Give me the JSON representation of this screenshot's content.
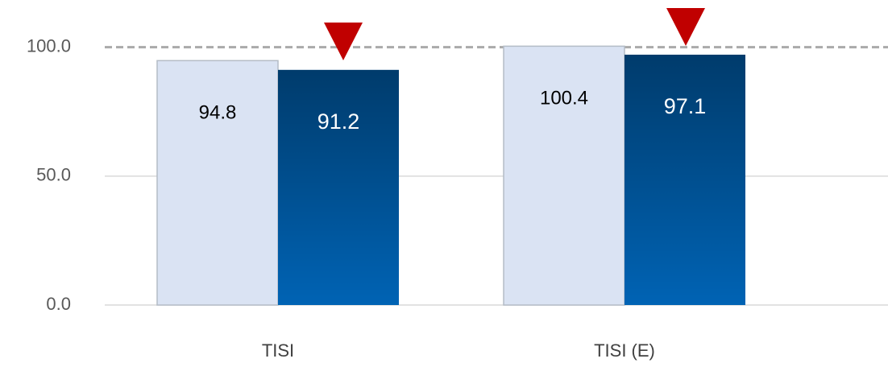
{
  "chart_data": {
    "type": "bar",
    "categories": [
      "TISI",
      "TISI (E)"
    ],
    "series": [
      {
        "color": "#dae3f3",
        "values": [
          94.8,
          100.4
        ]
      },
      {
        "color": "#0063b4",
        "values": [
          91.2,
          97.1
        ]
      }
    ],
    "ylim": [
      0,
      118
    ],
    "yticks": [
      {
        "value": 0,
        "label": "0.0"
      },
      {
        "value": 50,
        "label": "50.0"
      },
      {
        "value": 100,
        "label": "100.0"
      }
    ],
    "grid": true
  }
}
